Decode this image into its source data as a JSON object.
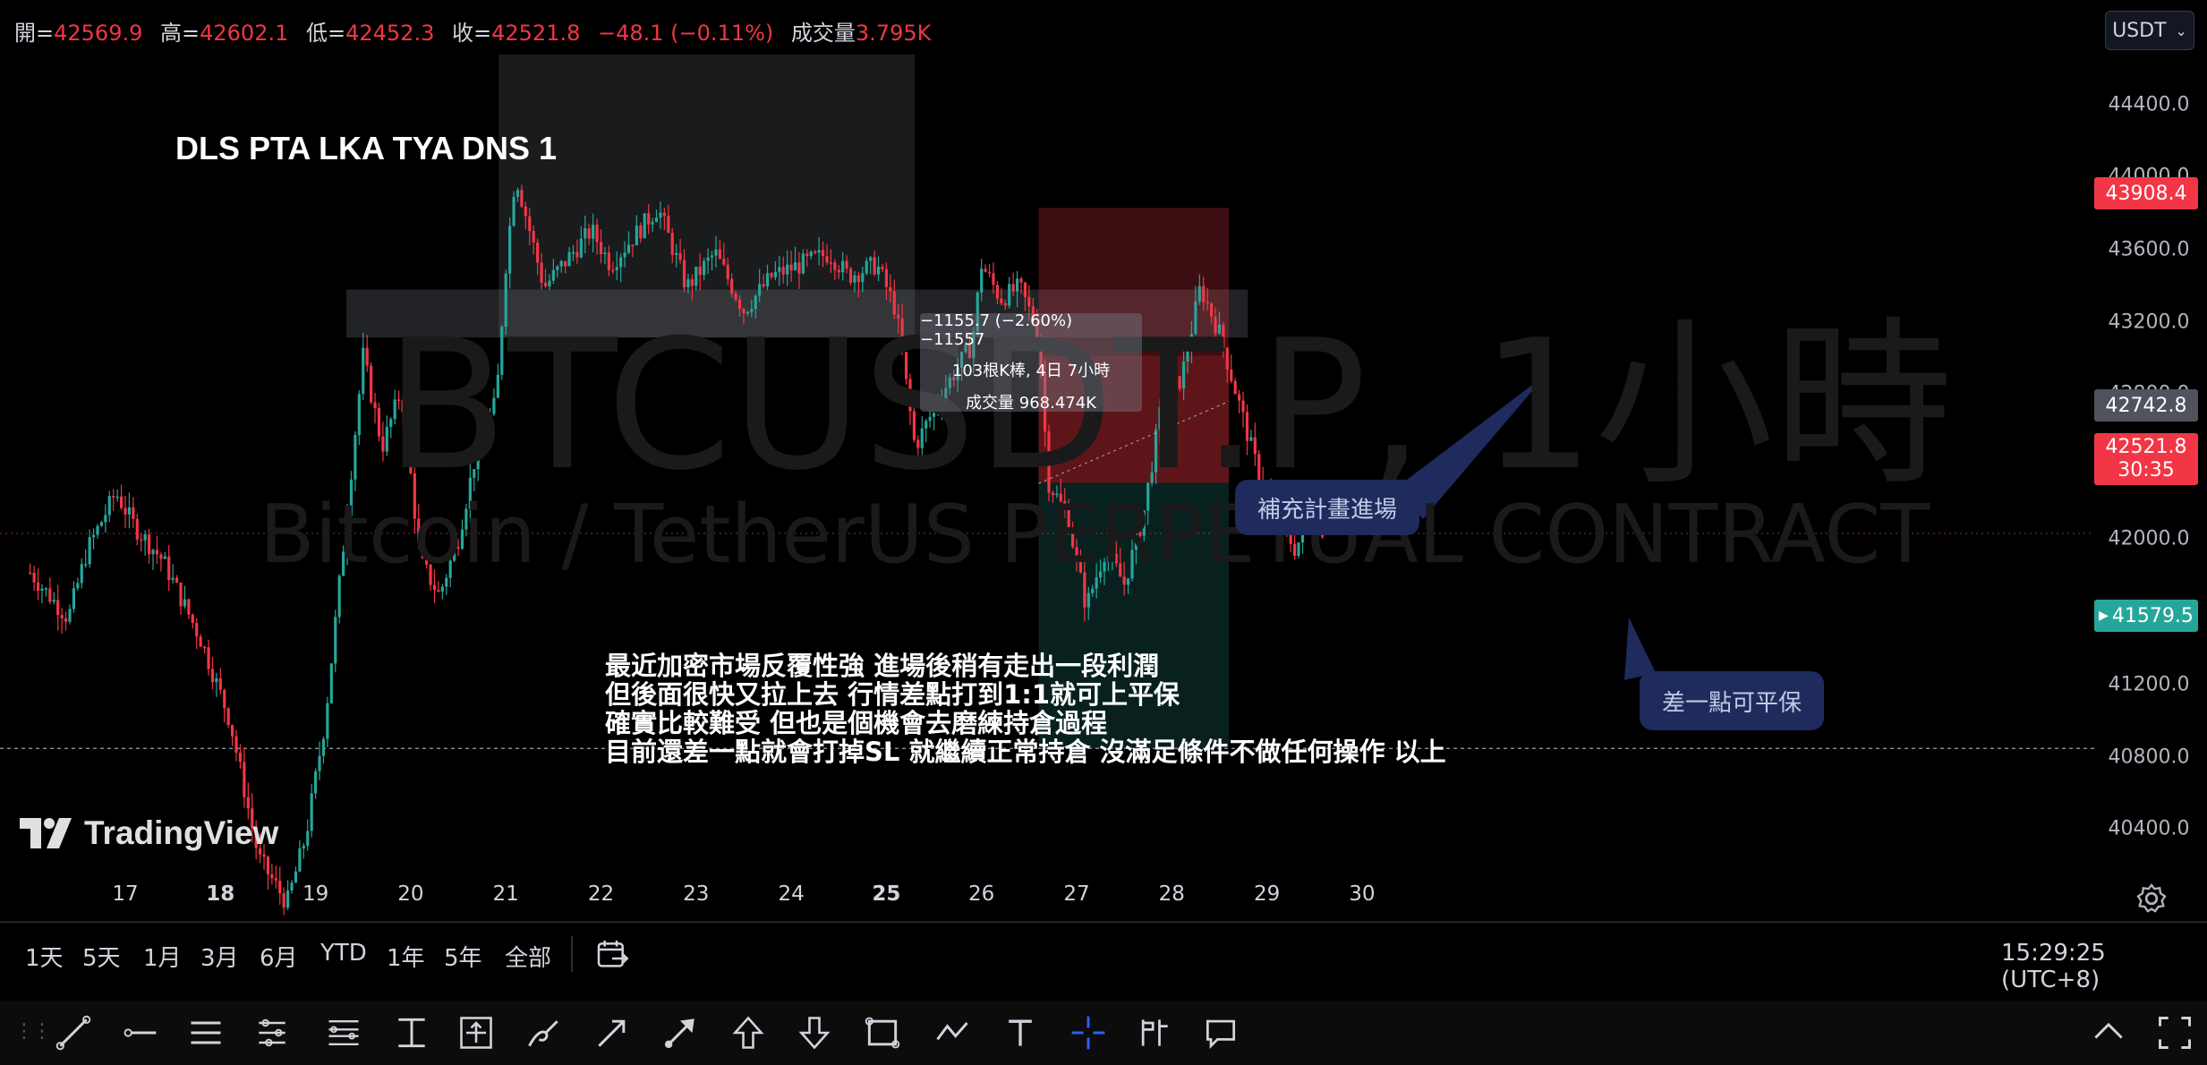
{
  "ohlc": {
    "open_label": "開=",
    "open": "42569.9",
    "high_label": "高=",
    "high": "42602.1",
    "low_label": "低=",
    "low": "42452.3",
    "close_label": "收=",
    "close": "42521.8",
    "change": "−48.1 (−0.11%)",
    "volume_label": "成交量",
    "volume": "3.795K"
  },
  "currency": {
    "label": "USDT"
  },
  "title": "DLS PTA LKA TYA DNS 1",
  "watermark": {
    "symbol": "BTCUSDT.P, 1小時",
    "name": "Bitcoin / TetherUS PERPETUAL CONTRACT"
  },
  "measure": {
    "line1": "−1155.7 (−2.60%) −11557",
    "line2": "103根K棒, 4日 7小時",
    "line3": "成交量 968.474K"
  },
  "callouts": {
    "entry": "補充計畫進場",
    "breakeven": "差一點可平保"
  },
  "note": [
    "最近加密市場反覆性強 進場後稍有走出一段利潤",
    "但後面很快又拉上去 行情差點打到1:1就可上平保",
    "確實比較難受 但也是個機會去磨練持倉過程",
    "目前還差一點就會打掉SL 就繼續正常持倉 沒滿足條件不做任何操作 以上"
  ],
  "price_axis": [
    "44400.0",
    "44000.0",
    "43600.0",
    "43200.0",
    "42800.0",
    "42000.0",
    "41200.0",
    "40800.0",
    "40400.0"
  ],
  "price_tags": {
    "stop": "43908.4",
    "entry": "42742.8",
    "last": "42521.8",
    "countdown": "30:35",
    "target": "41579.5"
  },
  "time_axis": [
    "17",
    "18",
    "19",
    "20",
    "21",
    "22",
    "23",
    "24",
    "25",
    "26",
    "27",
    "28",
    "29",
    "30"
  ],
  "logo": "TradingView",
  "ranges": [
    "1天",
    "5天",
    "1月",
    "3月",
    "6月",
    "YTD",
    "1年",
    "5年",
    "全部"
  ],
  "clock": "15:29:25 (UTC+8)",
  "tools": [
    "trend-line",
    "horizontal-ray",
    "parallel-channel",
    "pitchfork",
    "fib-retracement",
    "long-position",
    "price-range",
    "brush",
    "arrow-marker",
    "arrow",
    "arrow-up",
    "arrow-down",
    "rectangle",
    "path",
    "text",
    "crosshair",
    "anchored-vwap",
    "comment"
  ],
  "colors": {
    "up": "#26a69a",
    "down": "#f23645",
    "background": "#000000"
  },
  "chart_data": {
    "type": "candlestick",
    "symbol": "BTCUSDT.P",
    "timeframe": "1小時",
    "ylim": [
      40200,
      44600
    ],
    "x_ticks": [
      "17",
      "18",
      "19",
      "20",
      "21",
      "22",
      "23",
      "24",
      "25",
      "26",
      "27",
      "28",
      "29",
      "30"
    ],
    "anchors": [
      [
        16.0,
        42350
      ],
      [
        16.4,
        42150
      ],
      [
        16.6,
        42450
      ],
      [
        16.9,
        42700
      ],
      [
        17.1,
        42550
      ],
      [
        17.4,
        42400
      ],
      [
        17.8,
        42050
      ],
      [
        18.1,
        41700
      ],
      [
        18.4,
        41100
      ],
      [
        18.7,
        40900
      ],
      [
        18.9,
        41200
      ],
      [
        19.1,
        41700
      ],
      [
        19.3,
        42500
      ],
      [
        19.5,
        43300
      ],
      [
        19.7,
        42900
      ],
      [
        19.9,
        43150
      ],
      [
        20.1,
        42400
      ],
      [
        20.3,
        42250
      ],
      [
        20.5,
        42500
      ],
      [
        20.7,
        42900
      ],
      [
        20.9,
        43100
      ],
      [
        21.0,
        43700
      ],
      [
        21.1,
        44100
      ],
      [
        21.4,
        43600
      ],
      [
        21.7,
        43750
      ],
      [
        21.9,
        43850
      ],
      [
        22.1,
        43700
      ],
      [
        22.4,
        43850
      ],
      [
        22.6,
        43950
      ],
      [
        22.9,
        43600
      ],
      [
        23.2,
        43750
      ],
      [
        23.5,
        43500
      ],
      [
        23.8,
        43650
      ],
      [
        24.1,
        43700
      ],
      [
        24.4,
        43750
      ],
      [
        24.6,
        43650
      ],
      [
        24.9,
        43700
      ],
      [
        25.1,
        43500
      ],
      [
        25.3,
        42900
      ],
      [
        25.6,
        43150
      ],
      [
        25.9,
        43350
      ],
      [
        26.0,
        43700
      ],
      [
        26.2,
        43550
      ],
      [
        26.4,
        43600
      ],
      [
        26.6,
        43400
      ],
      [
        26.7,
        42750
      ],
      [
        26.9,
        42600
      ],
      [
        27.1,
        42200
      ],
      [
        27.3,
        42450
      ],
      [
        27.5,
        42300
      ],
      [
        27.7,
        42600
      ],
      [
        27.9,
        43100
      ],
      [
        28.1,
        43200
      ],
      [
        28.3,
        43600
      ],
      [
        28.5,
        43400
      ],
      [
        28.7,
        43100
      ],
      [
        28.9,
        42800
      ],
      [
        29.1,
        42600
      ],
      [
        29.3,
        42450
      ],
      [
        29.5,
        42650
      ],
      [
        29.6,
        42520
      ]
    ],
    "positions": {
      "entry": 42742.8,
      "stop": 43908.4,
      "target": 41579.5,
      "last": 42521.8
    }
  }
}
